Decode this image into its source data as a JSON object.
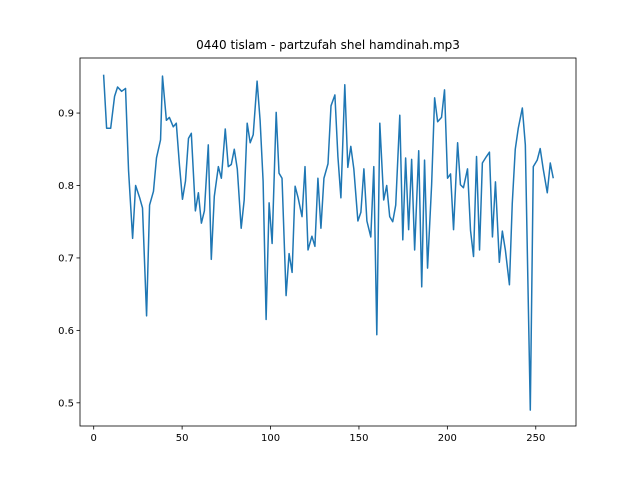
{
  "chart_data": {
    "type": "line",
    "title": "0440 tislam - partzufah shel hamdinah.mp3",
    "x": [
      5.6,
      7.3,
      9.6,
      11.8,
      13.5,
      15.8,
      18,
      19.7,
      22,
      23.7,
      26,
      27.6,
      29.9,
      31.6,
      33.8,
      35.5,
      37.8,
      38.9,
      41.1,
      42.8,
      45,
      46.7,
      48.5,
      50.2,
      51.9,
      53.6,
      55.2,
      57.5,
      59.2,
      60.9,
      62.6,
      64.8,
      66.5,
      68.2,
      70.5,
      72.2,
      74.4,
      76.1,
      77.8,
      79.5,
      81.2,
      83.4,
      85.1,
      86.8,
      88.5,
      90.2,
      92.4,
      94.1,
      95.8,
      97.5,
      99.2,
      100.9,
      103.2,
      104.8,
      106.5,
      108.8,
      110.5,
      112.2,
      113.9,
      115.6,
      117.8,
      119.5,
      121.2,
      123.4,
      125.1,
      126.8,
      128.5,
      130.2,
      132.5,
      134.2,
      136.4,
      138.1,
      139.8,
      142,
      143.7,
      145.4,
      147.1,
      149.4,
      151.1,
      152.8,
      154.5,
      156.7,
      158.4,
      160.1,
      161.8,
      164,
      165.7,
      167.4,
      169.1,
      170.8,
      173.1,
      174.8,
      176.4,
      178.1,
      179.8,
      181.5,
      183.8,
      185.5,
      187.1,
      188.8,
      191.1,
      192.8,
      194.5,
      196.7,
      198.4,
      200.1,
      201.8,
      203.5,
      205.8,
      207.4,
      209.1,
      211.4,
      213.1,
      214.8,
      216.5,
      218.2,
      219.8,
      222.1,
      223.8,
      225.5,
      227.2,
      229.4,
      231.1,
      232.8,
      235.1,
      236.7,
      238.4,
      240.1,
      242.4,
      244.1,
      246.9,
      248.6,
      250.8,
      252.5,
      254.2,
      256.5,
      258.2,
      259.9
    ],
    "series": [
      {
        "color": "#1f77b4",
        "values": [
          0.953,
          0.879,
          0.879,
          0.923,
          0.936,
          0.93,
          0.934,
          0.821,
          0.727,
          0.8,
          0.783,
          0.769,
          0.62,
          0.773,
          0.792,
          0.838,
          0.863,
          0.951,
          0.89,
          0.894,
          0.881,
          0.886,
          0.828,
          0.781,
          0.806,
          0.865,
          0.872,
          0.765,
          0.79,
          0.748,
          0.765,
          0.856,
          0.698,
          0.785,
          0.826,
          0.81,
          0.878,
          0.826,
          0.829,
          0.85,
          0.823,
          0.741,
          0.78,
          0.886,
          0.859,
          0.87,
          0.944,
          0.89,
          0.806,
          0.615,
          0.776,
          0.72,
          0.901,
          0.817,
          0.81,
          0.648,
          0.706,
          0.68,
          0.799,
          0.783,
          0.757,
          0.826,
          0.711,
          0.73,
          0.716,
          0.81,
          0.741,
          0.81,
          0.83,
          0.91,
          0.925,
          0.84,
          0.783,
          0.939,
          0.825,
          0.854,
          0.823,
          0.751,
          0.763,
          0.823,
          0.751,
          0.729,
          0.826,
          0.594,
          0.886,
          0.78,
          0.8,
          0.757,
          0.75,
          0.773,
          0.897,
          0.725,
          0.838,
          0.739,
          0.836,
          0.711,
          0.848,
          0.66,
          0.835,
          0.686,
          0.801,
          0.921,
          0.888,
          0.894,
          0.932,
          0.81,
          0.816,
          0.739,
          0.859,
          0.801,
          0.797,
          0.823,
          0.738,
          0.702,
          0.84,
          0.711,
          0.831,
          0.84,
          0.846,
          0.729,
          0.805,
          0.694,
          0.737,
          0.711,
          0.663,
          0.775,
          0.85,
          0.879,
          0.907,
          0.856,
          0.49,
          0.826,
          0.835,
          0.851,
          0.823,
          0.79,
          0.831,
          0.81
        ]
      }
    ],
    "xlim": [
      -7.75,
      272.75
    ],
    "xticks": [
      0,
      50,
      100,
      150,
      200,
      250
    ],
    "ylim": [
      0.468,
      0.976
    ],
    "yticks": [
      0.5,
      0.6,
      0.7,
      0.8,
      0.9
    ]
  }
}
